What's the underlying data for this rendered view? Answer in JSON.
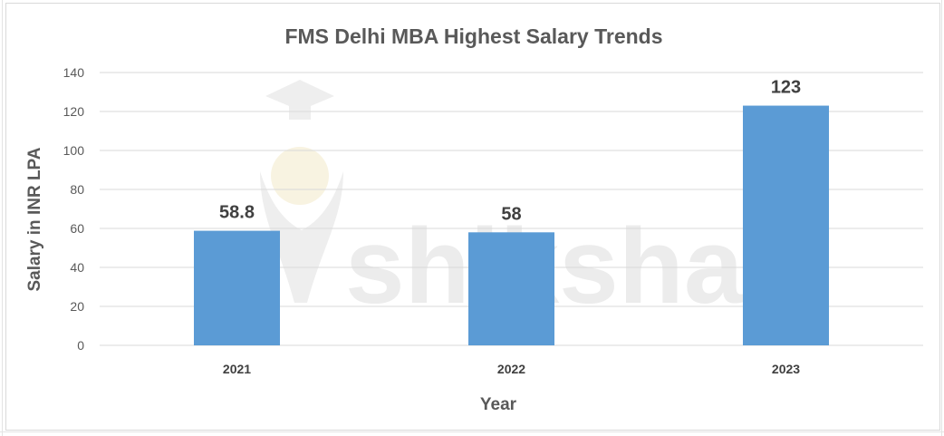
{
  "watermark": {
    "text": "shiksha",
    "icon": "graduate-figure-icon"
  },
  "colors": {
    "bar": "#5b9bd5",
    "gridline": "#d9d9d9",
    "text": "#595959"
  },
  "chart_data": {
    "type": "bar",
    "title": "FMS Delhi MBA Highest Salary Trends",
    "xlabel": "Year",
    "ylabel": "Salary in INR LPA",
    "categories": [
      "2021",
      "2022",
      "2023"
    ],
    "series": [
      {
        "values": [
          58.8,
          58,
          123
        ],
        "data_labels": [
          "58.8",
          "58",
          "123"
        ]
      }
    ],
    "ylim": [
      0,
      140
    ],
    "yticks": [
      0,
      20,
      40,
      60,
      80,
      100,
      120,
      140
    ],
    "grid": true,
    "legend": "none"
  }
}
